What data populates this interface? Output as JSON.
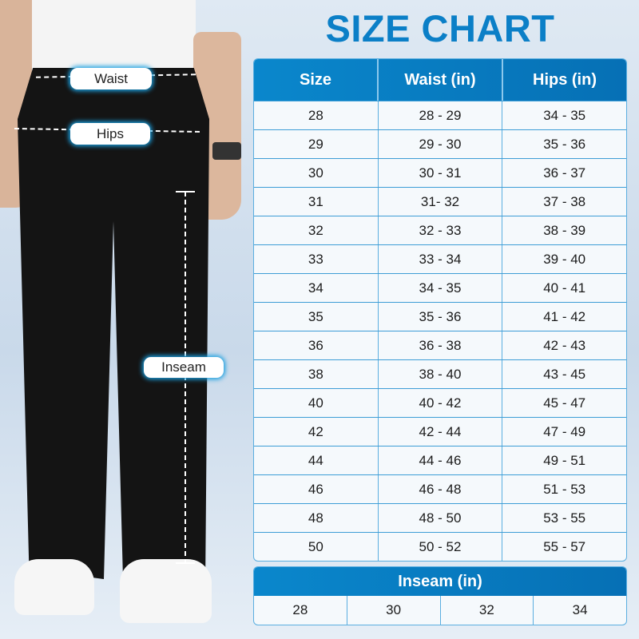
{
  "title": "SIZE CHART",
  "labels": {
    "waist": "Waist",
    "hips": "Hips",
    "inseam": "Inseam"
  },
  "table": {
    "headers": [
      "Size",
      "Waist (in)",
      "Hips (in)"
    ],
    "rows": [
      [
        "28",
        "28 - 29",
        "34 - 35"
      ],
      [
        "29",
        "29 - 30",
        "35 - 36"
      ],
      [
        "30",
        "30 - 31",
        "36 - 37"
      ],
      [
        "31",
        "31- 32",
        "37 - 38"
      ],
      [
        "32",
        "32 - 33",
        "38 - 39"
      ],
      [
        "33",
        "33 - 34",
        "39 - 40"
      ],
      [
        "34",
        "34 - 35",
        "40 - 41"
      ],
      [
        "35",
        "35 - 36",
        "41 - 42"
      ],
      [
        "36",
        "36 - 38",
        "42 - 43"
      ],
      [
        "38",
        "38 - 40",
        "43 - 45"
      ],
      [
        "40",
        "40 - 42",
        "45 - 47"
      ],
      [
        "42",
        "42 - 44",
        "47 - 49"
      ],
      [
        "44",
        "44 - 46",
        "49 - 51"
      ],
      [
        "46",
        "46 - 48",
        "51 - 53"
      ],
      [
        "48",
        "48 - 50",
        "53 - 55"
      ],
      [
        "50",
        "50 - 52",
        "55 - 57"
      ]
    ]
  },
  "inseam": {
    "header": "Inseam (in)",
    "values": [
      "28",
      "30",
      "32",
      "34"
    ]
  },
  "colors": {
    "accent": "#0b7fc7",
    "header_bg": "#0a87cc"
  }
}
